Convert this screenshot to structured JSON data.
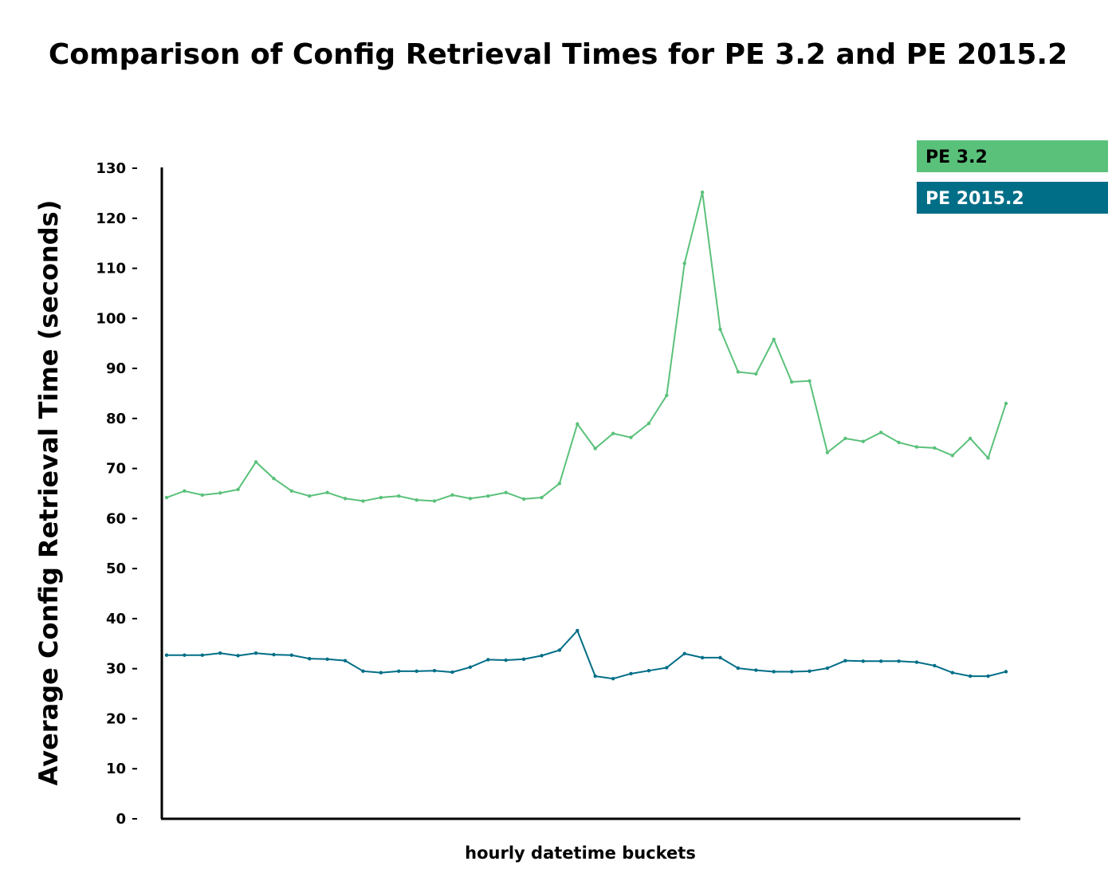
{
  "chart_data": {
    "type": "line",
    "title": "Comparison of Config Retrieval Times for PE 3.2 and PE 2015.2",
    "xlabel": "hourly datetime buckets",
    "ylabel": "Average Config Retrieval Time (seconds)",
    "ylim": [
      0,
      130
    ],
    "yticks": [
      0,
      10,
      20,
      30,
      40,
      50,
      60,
      70,
      80,
      90,
      100,
      110,
      120,
      130
    ],
    "grid": false,
    "legend_position": "top-right",
    "x": [
      1,
      2,
      3,
      4,
      5,
      6,
      7,
      8,
      9,
      10,
      11,
      12,
      13,
      14,
      15,
      16,
      17,
      18,
      19,
      20,
      21,
      22,
      23,
      24,
      25,
      26,
      27,
      28,
      29,
      30,
      31,
      32,
      33,
      34,
      35,
      36,
      37,
      38,
      39,
      40,
      41,
      42,
      43,
      44,
      45,
      46,
      47,
      48
    ],
    "series": [
      {
        "name": "PE 3.2",
        "color": "#5ac17a",
        "values": [
          64.2,
          65.5,
          64.7,
          65.1,
          65.8,
          71.3,
          68.0,
          65.5,
          64.5,
          65.2,
          64.0,
          63.5,
          64.2,
          64.5,
          63.7,
          63.5,
          64.7,
          64.0,
          64.5,
          65.2,
          63.9,
          64.2,
          67.0,
          78.9,
          74.0,
          77.0,
          76.2,
          79.0,
          84.6,
          111.0,
          125.2,
          97.8,
          89.3,
          88.9,
          95.8,
          87.3,
          87.5,
          73.2,
          76.0,
          75.4,
          77.2,
          75.2,
          74.3,
          74.1,
          72.6,
          76.0,
          72.1,
          83.0
        ]
      },
      {
        "name": "PE 2015.2",
        "color": "#006e87",
        "values": [
          32.7,
          32.7,
          32.7,
          33.1,
          32.6,
          33.1,
          32.8,
          32.7,
          32.0,
          31.9,
          31.6,
          29.5,
          29.2,
          29.5,
          29.5,
          29.6,
          29.3,
          30.3,
          31.8,
          31.7,
          31.9,
          32.6,
          33.7,
          37.6,
          28.5,
          28.0,
          29.0,
          29.6,
          30.2,
          33.0,
          32.2,
          32.2,
          30.1,
          29.7,
          29.4,
          29.4,
          29.5,
          30.1,
          31.6,
          31.5,
          31.5,
          31.5,
          31.3,
          30.6,
          29.2,
          28.5,
          28.5,
          29.4
        ]
      }
    ]
  }
}
